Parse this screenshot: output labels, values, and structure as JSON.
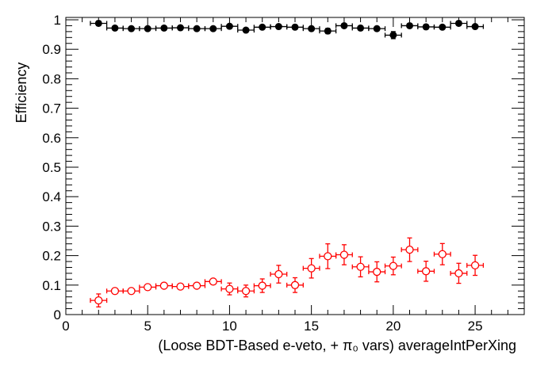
{
  "chart_data": {
    "type": "scatter",
    "title": "",
    "xlabel": "(Loose BDT-Based e-veto, +  π₀ vars) averageIntPerXing",
    "ylabel": "Efficiency",
    "xlim": [
      0,
      28
    ],
    "ylim": [
      0,
      1
    ],
    "xticks": [
      "0",
      "5",
      "10",
      "15",
      "20",
      "25"
    ],
    "yticks": [
      "0",
      "0.1",
      "0.2",
      "0.3",
      "0.4",
      "0.5",
      "0.6",
      "0.7",
      "0.8",
      "0.9",
      "1"
    ],
    "grid": false,
    "x": [
      2,
      3,
      4,
      5,
      6,
      7,
      8,
      9,
      10,
      11,
      12,
      13,
      14,
      15,
      16,
      17,
      18,
      19,
      20,
      21,
      22,
      23,
      24,
      25
    ],
    "series": [
      {
        "name": "black",
        "color": "#000000",
        "marker": "filled-circle",
        "values": [
          0.988,
          0.972,
          0.97,
          0.97,
          0.972,
          0.973,
          0.97,
          0.97,
          0.978,
          0.965,
          0.975,
          0.977,
          0.975,
          0.97,
          0.962,
          0.98,
          0.972,
          0.97,
          0.948,
          0.98,
          0.976,
          0.975,
          0.988,
          0.977
        ],
        "errors": [
          0.008,
          0.006,
          0.005,
          0.005,
          0.005,
          0.005,
          0.005,
          0.005,
          0.006,
          0.006,
          0.006,
          0.006,
          0.008,
          0.007,
          0.009,
          0.006,
          0.007,
          0.007,
          0.012,
          0.006,
          0.008,
          0.007,
          0.006,
          0.007
        ]
      },
      {
        "name": "red",
        "color": "#ff0000",
        "marker": "open-circle",
        "values": [
          0.048,
          0.08,
          0.08,
          0.093,
          0.098,
          0.095,
          0.098,
          0.112,
          0.087,
          0.08,
          0.098,
          0.137,
          0.1,
          0.157,
          0.198,
          0.203,
          0.162,
          0.145,
          0.165,
          0.22,
          0.147,
          0.205,
          0.14,
          0.167
        ],
        "errors": [
          0.022,
          0.006,
          0.006,
          0.006,
          0.006,
          0.006,
          0.006,
          0.007,
          0.02,
          0.02,
          0.023,
          0.03,
          0.025,
          0.033,
          0.042,
          0.034,
          0.034,
          0.034,
          0.03,
          0.04,
          0.034,
          0.036,
          0.034,
          0.034
        ]
      }
    ]
  }
}
